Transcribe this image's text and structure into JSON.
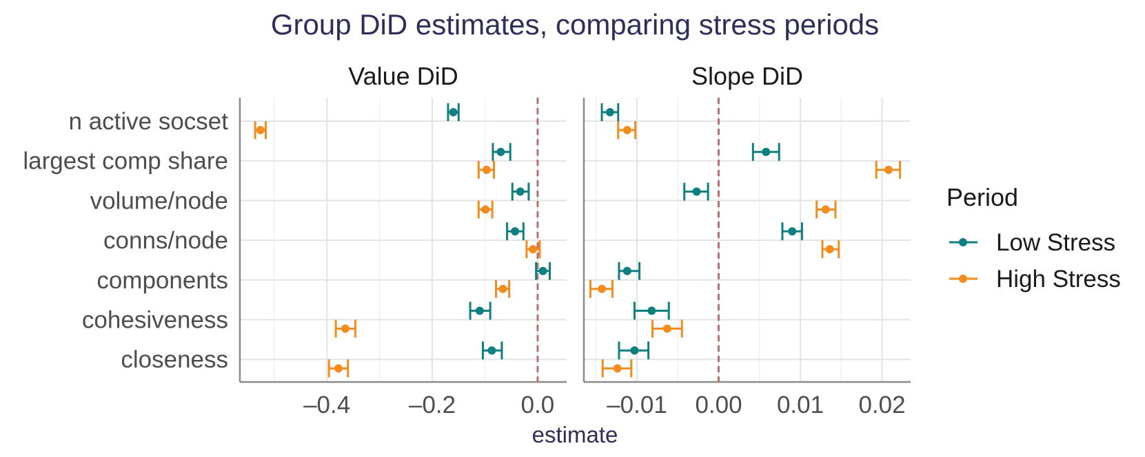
{
  "chart_data": {
    "type": "forest",
    "title": "Group DiD estimates, comparing stress periods",
    "xlabel": "estimate",
    "ylabel": "",
    "categories": [
      "n active socset",
      "largest comp share",
      "volume/node",
      "conns/node",
      "components",
      "cohesiveness",
      "closeness"
    ],
    "legend": {
      "title": "Period",
      "position": "right",
      "entries": [
        {
          "name": "Low Stress",
          "color": "#0f7f7f"
        },
        {
          "name": "High Stress",
          "color": "#f28c1e"
        }
      ]
    },
    "reference_line": {
      "value": 0,
      "style": "dashed",
      "color": "#b5726f"
    },
    "panels": [
      {
        "title": "Value DiD",
        "xlim": [
          -0.565,
          0.055
        ],
        "xticks": [
          -0.4,
          -0.2,
          0.0
        ],
        "xtick_labels": [
          "–0.4",
          "–0.2",
          "0.0"
        ],
        "series": [
          {
            "name": "Low Stress",
            "estimates": [
              -0.16,
              -0.07,
              -0.033,
              -0.043,
              0.01,
              -0.11,
              -0.087
            ],
            "lower": [
              -0.17,
              -0.085,
              -0.048,
              -0.058,
              -0.003,
              -0.128,
              -0.104
            ],
            "upper": [
              -0.15,
              -0.052,
              -0.017,
              -0.027,
              0.023,
              -0.09,
              -0.068
            ]
          },
          {
            "name": "High Stress",
            "estimates": [
              -0.526,
              -0.097,
              -0.099,
              -0.009,
              -0.066,
              -0.365,
              -0.378
            ],
            "lower": [
              -0.536,
              -0.112,
              -0.112,
              -0.021,
              -0.079,
              -0.383,
              -0.396
            ],
            "upper": [
              -0.516,
              -0.083,
              -0.086,
              0.004,
              -0.054,
              -0.346,
              -0.36
            ]
          }
        ]
      },
      {
        "title": "Slope DiD",
        "xlim": [
          -0.0165,
          0.0235
        ],
        "xticks": [
          -0.01,
          0.0,
          0.01,
          0.02
        ],
        "xtick_labels": [
          "–0.01",
          "0.00",
          "0.01",
          "0.02"
        ],
        "series": [
          {
            "name": "Low Stress",
            "estimates": [
              -0.0133,
              0.0058,
              -0.0027,
              0.009,
              -0.0112,
              -0.0082,
              -0.0103
            ],
            "lower": [
              -0.0143,
              0.0042,
              -0.0042,
              0.0078,
              -0.0122,
              -0.0103,
              -0.0122
            ],
            "upper": [
              -0.0123,
              0.0074,
              -0.0013,
              0.0102,
              -0.0097,
              -0.0061,
              -0.0086
            ]
          },
          {
            "name": "High Stress",
            "estimates": [
              -0.0112,
              0.0208,
              0.0131,
              0.0136,
              -0.0143,
              -0.0063,
              -0.0124
            ],
            "lower": [
              -0.0123,
              0.0193,
              0.012,
              0.0127,
              -0.0157,
              -0.0081,
              -0.0142
            ],
            "upper": [
              -0.0102,
              0.0222,
              0.0143,
              0.0147,
              -0.013,
              -0.0045,
              -0.0107
            ]
          }
        ]
      }
    ]
  }
}
